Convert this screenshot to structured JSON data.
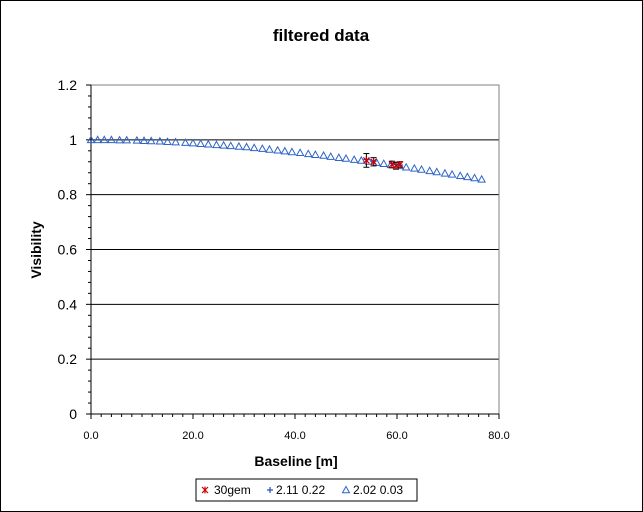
{
  "chart_data": {
    "type": "scatter",
    "title": "filtered data",
    "xlabel": "Baseline [m]",
    "ylabel": "Visibility",
    "xlim": [
      0,
      80
    ],
    "ylim": [
      0,
      1.2
    ],
    "x_ticks": [
      "0.0",
      "20.0",
      "40.0",
      "60.0",
      "80.0"
    ],
    "y_ticks": [
      "0",
      "0.2",
      "0.4",
      "0.6",
      "0.8",
      "1",
      "1.2"
    ],
    "grid": "horizontal",
    "legend_position": "bottom",
    "series": [
      {
        "name": "30gem",
        "marker": "asterisk",
        "color": "#cc0000",
        "points": [
          {
            "x": 54.0,
            "y": 0.925,
            "err": 0.025
          },
          {
            "x": 55.4,
            "y": 0.92,
            "err": 0.015
          },
          {
            "x": 59.0,
            "y": 0.91,
            "err": 0.012
          },
          {
            "x": 59.8,
            "y": 0.905,
            "err": 0.012
          },
          {
            "x": 60.6,
            "y": 0.91,
            "err": 0.01
          }
        ]
      },
      {
        "name": "2.11 0.22",
        "marker": "plus",
        "color": "#1f4fb0",
        "points": [
          {
            "x": 54.0,
            "y": 0.928
          },
          {
            "x": 55.4,
            "y": 0.922
          },
          {
            "x": 59.0,
            "y": 0.914
          },
          {
            "x": 59.8,
            "y": 0.911
          },
          {
            "x": 60.6,
            "y": 0.908
          }
        ]
      },
      {
        "name": "2.02 0.03",
        "marker": "triangle",
        "color": "#2e63c8",
        "points": [
          {
            "x": 0.0,
            "y": 1.0
          },
          {
            "x": 1.3,
            "y": 1.0
          },
          {
            "x": 2.6,
            "y": 1.0
          },
          {
            "x": 4.0,
            "y": 1.0
          },
          {
            "x": 5.6,
            "y": 0.999
          },
          {
            "x": 7.0,
            "y": 0.999
          },
          {
            "x": 9.0,
            "y": 0.998
          },
          {
            "x": 10.4,
            "y": 0.997
          },
          {
            "x": 11.8,
            "y": 0.996
          },
          {
            "x": 13.5,
            "y": 0.995
          },
          {
            "x": 15.0,
            "y": 0.993
          },
          {
            "x": 16.6,
            "y": 0.992
          },
          {
            "x": 18.5,
            "y": 0.99
          },
          {
            "x": 20.0,
            "y": 0.988
          },
          {
            "x": 21.5,
            "y": 0.986
          },
          {
            "x": 23.0,
            "y": 0.984
          },
          {
            "x": 24.6,
            "y": 0.982
          },
          {
            "x": 26.0,
            "y": 0.98
          },
          {
            "x": 27.4,
            "y": 0.978
          },
          {
            "x": 29.0,
            "y": 0.976
          },
          {
            "x": 30.5,
            "y": 0.974
          },
          {
            "x": 32.0,
            "y": 0.971
          },
          {
            "x": 33.6,
            "y": 0.968
          },
          {
            "x": 35.0,
            "y": 0.965
          },
          {
            "x": 36.6,
            "y": 0.962
          },
          {
            "x": 38.0,
            "y": 0.959
          },
          {
            "x": 39.4,
            "y": 0.956
          },
          {
            "x": 41.0,
            "y": 0.953
          },
          {
            "x": 42.6,
            "y": 0.949
          },
          {
            "x": 44.0,
            "y": 0.946
          },
          {
            "x": 45.6,
            "y": 0.943
          },
          {
            "x": 47.0,
            "y": 0.939
          },
          {
            "x": 48.6,
            "y": 0.935
          },
          {
            "x": 50.0,
            "y": 0.932
          },
          {
            "x": 51.6,
            "y": 0.928
          },
          {
            "x": 53.0,
            "y": 0.925
          },
          {
            "x": 54.5,
            "y": 0.921
          },
          {
            "x": 56.0,
            "y": 0.917
          },
          {
            "x": 57.4,
            "y": 0.913
          },
          {
            "x": 58.8,
            "y": 0.909
          },
          {
            "x": 60.4,
            "y": 0.905
          },
          {
            "x": 61.8,
            "y": 0.9
          },
          {
            "x": 63.4,
            "y": 0.896
          },
          {
            "x": 64.8,
            "y": 0.892
          },
          {
            "x": 66.4,
            "y": 0.887
          },
          {
            "x": 67.8,
            "y": 0.883
          },
          {
            "x": 69.4,
            "y": 0.878
          },
          {
            "x": 70.8,
            "y": 0.874
          },
          {
            "x": 72.4,
            "y": 0.869
          },
          {
            "x": 73.8,
            "y": 0.865
          },
          {
            "x": 75.2,
            "y": 0.861
          },
          {
            "x": 76.6,
            "y": 0.856
          }
        ]
      }
    ]
  }
}
